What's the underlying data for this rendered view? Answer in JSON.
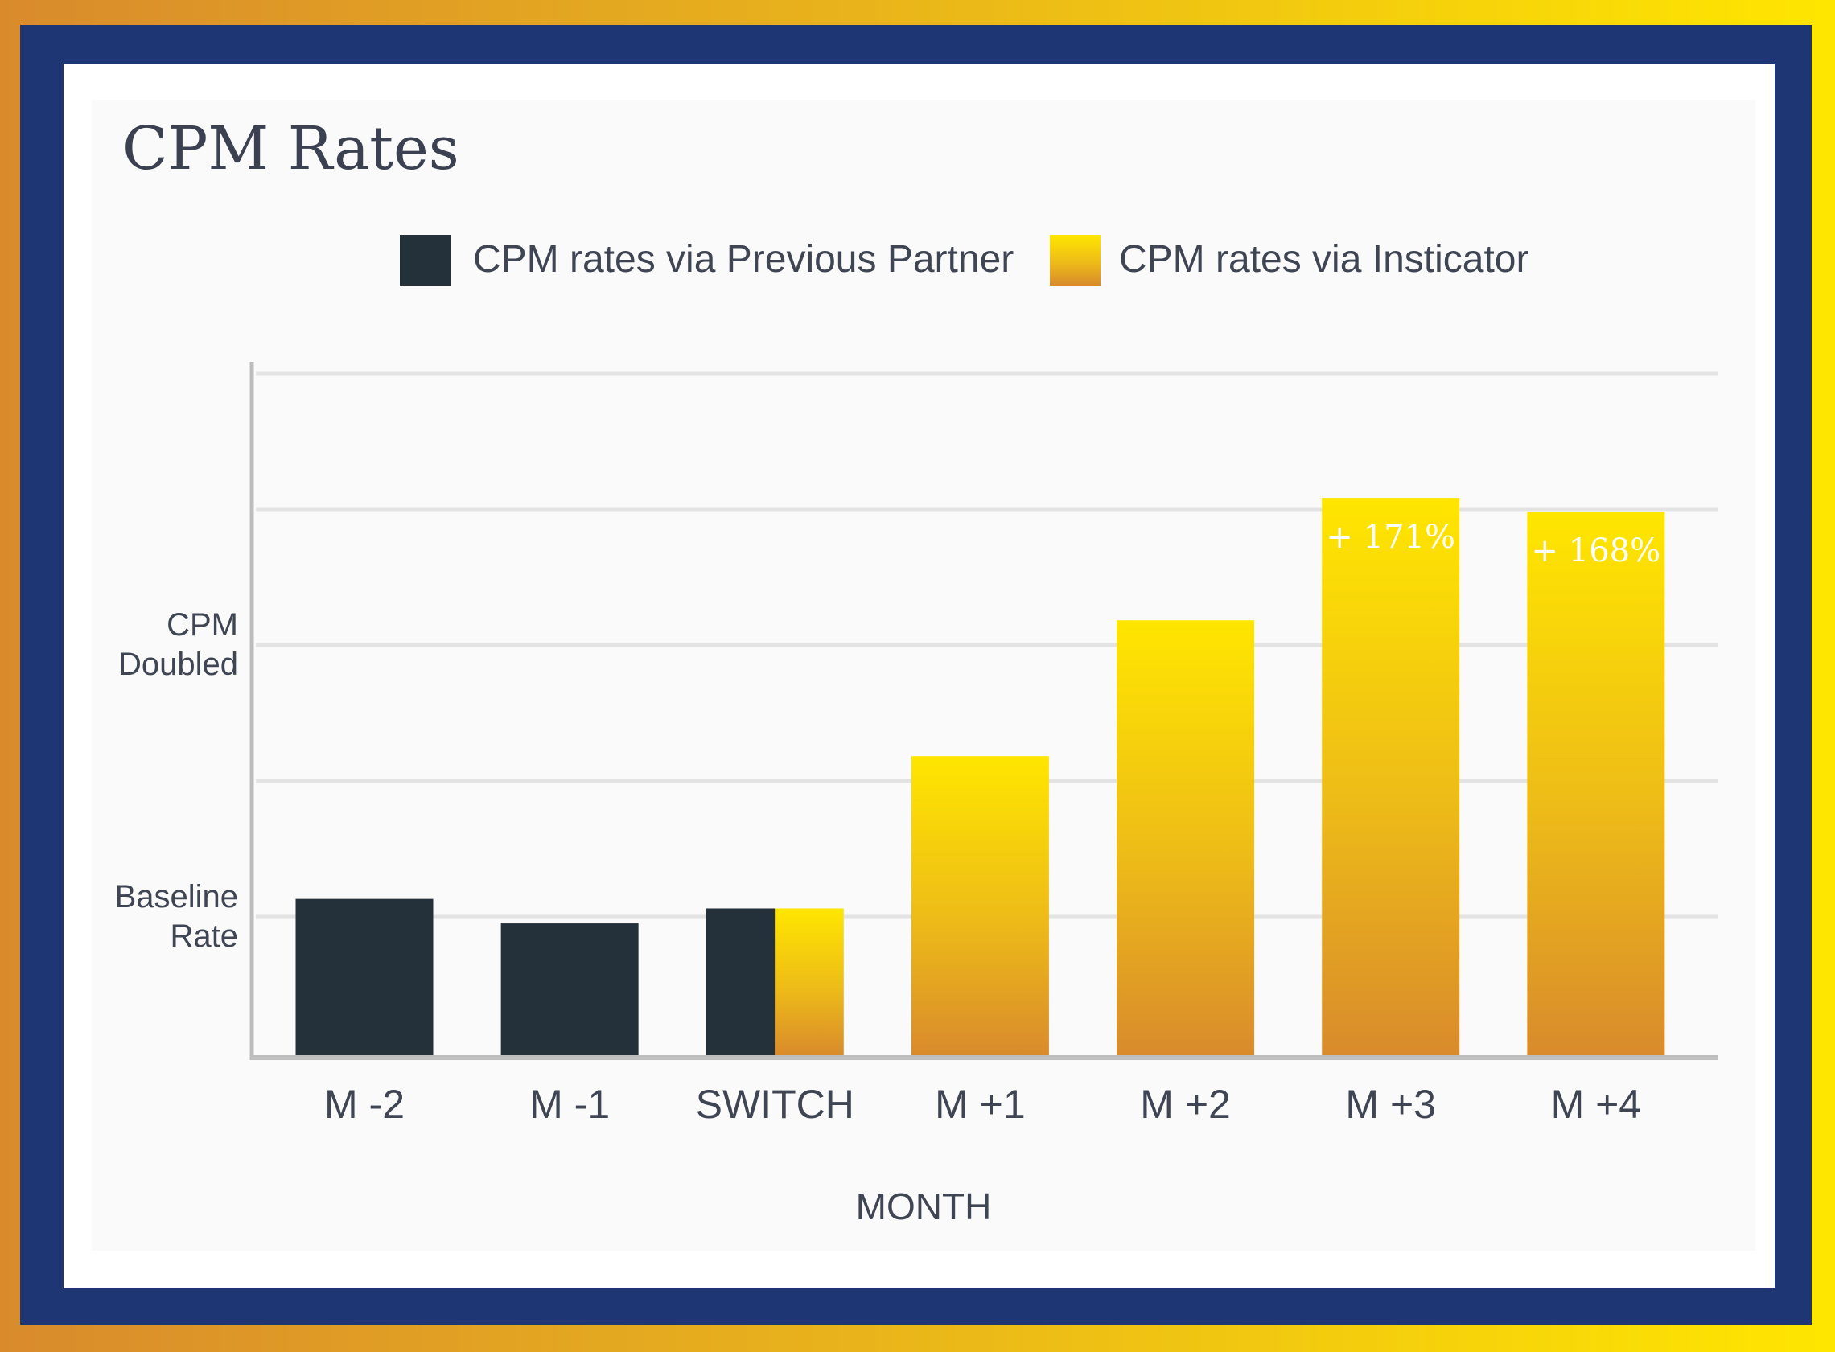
{
  "chart_data": {
    "type": "bar",
    "title": "CPM Rates",
    "xlabel": "MONTH",
    "categories": [
      "M -2",
      "M -1",
      "SWITCH",
      "M +1",
      "M +2",
      "M +3",
      "M +4"
    ],
    "series": [
      {
        "name": "CPM rates via Previous Partner",
        "values": [
          1.15,
          0.97,
          1.08,
          0,
          0,
          0,
          0
        ],
        "color": "#24303a"
      },
      {
        "name": "CPM rates via Insticator",
        "values": [
          0,
          0,
          1.08,
          2.2,
          3.2,
          4.1,
          4.0
        ],
        "color": "#f5c810"
      }
    ],
    "ylim": [
      0,
      5
    ],
    "ytick_labels": [
      {
        "value": 1,
        "lines": [
          "Baseline",
          "Rate"
        ]
      },
      {
        "value": 3,
        "lines": [
          "CPM",
          "Doubled"
        ]
      }
    ],
    "annotations": [
      {
        "category": "M +3",
        "text": "+ 171%"
      },
      {
        "category": "M +4",
        "text": "+ 168%"
      }
    ],
    "grid": true,
    "legend_placement": "top-center",
    "colors": {
      "previous_partner": "#24303a",
      "insticator_top": "#ffe600",
      "insticator_bottom": "#d98b2c",
      "frame_navy": "#1e3674"
    }
  }
}
